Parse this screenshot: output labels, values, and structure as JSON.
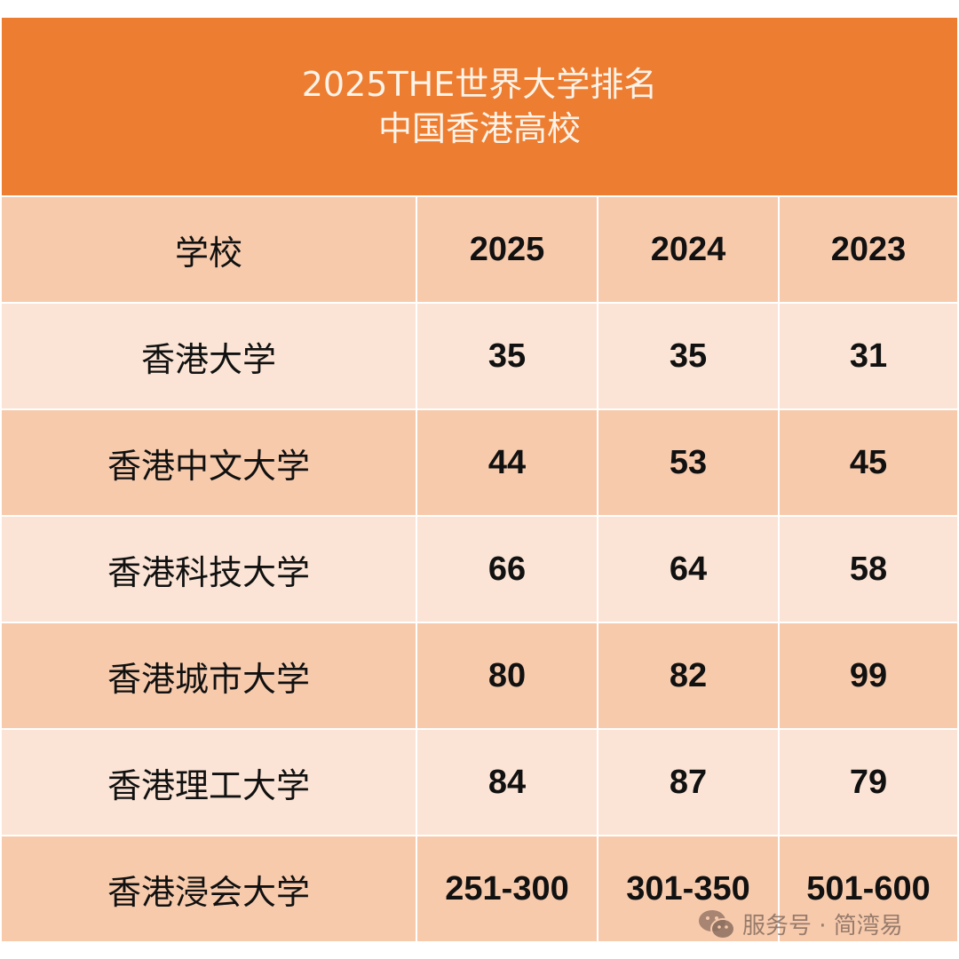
{
  "title": {
    "line1": "2025THE世界大学排名",
    "line2": "中国香港高校"
  },
  "table": {
    "headers": [
      "学校",
      "2025",
      "2024",
      "2023"
    ],
    "rows": [
      [
        "香港大学",
        "35",
        "35",
        "31"
      ],
      [
        "香港中文大学",
        "44",
        "53",
        "45"
      ],
      [
        "香港科技大学",
        "66",
        "64",
        "58"
      ],
      [
        "香港城市大学",
        "80",
        "82",
        "99"
      ],
      [
        "香港理工大学",
        "84",
        "87",
        "79"
      ],
      [
        "香港浸会大学",
        "251-300",
        "301-350",
        "501-600"
      ]
    ]
  },
  "watermark": {
    "icon": "wechat-icon",
    "text": "服务号 · 简湾易"
  },
  "colors": {
    "title_bg": "#ED7D31",
    "row_dark": "#F7CAAC",
    "row_light": "#FBE4D5"
  }
}
